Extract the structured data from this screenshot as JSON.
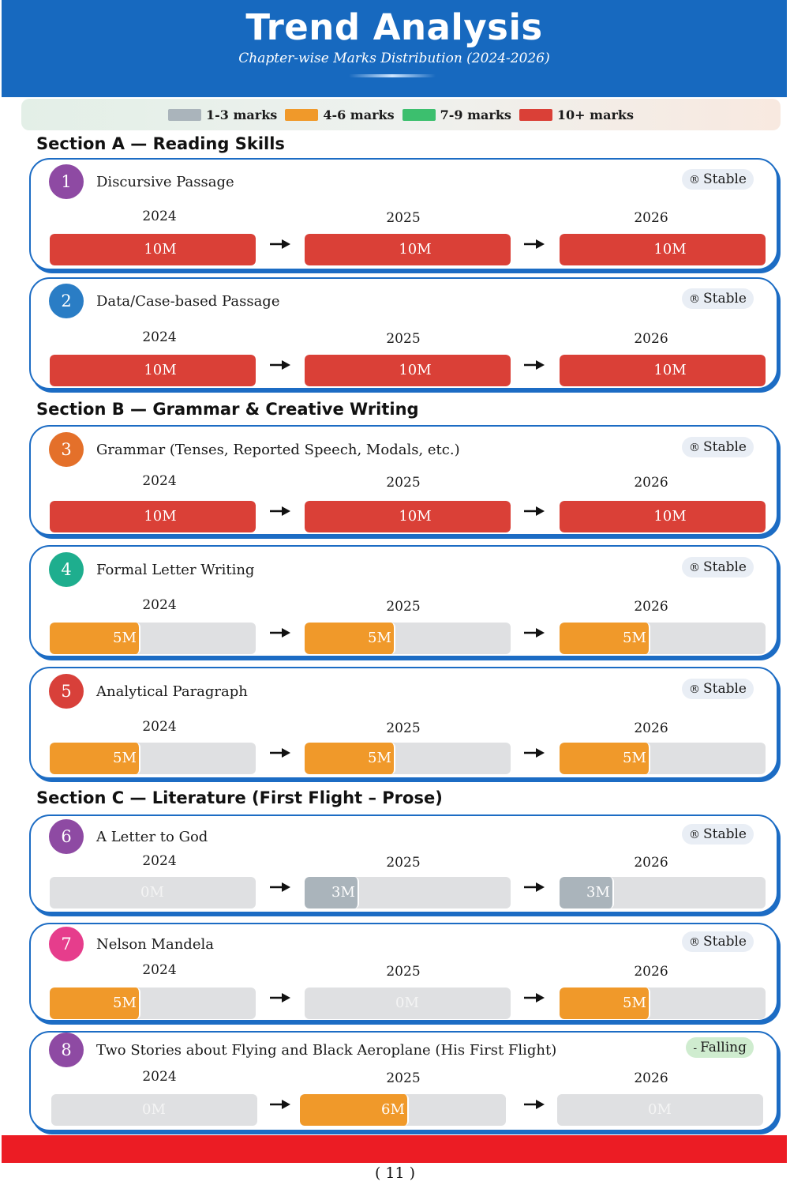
{
  "header": {
    "title": "Trend Analysis",
    "subtitle": "Chapter-wise Marks Distribution (2024-2026)"
  },
  "legend": [
    {
      "label": "1-3 marks",
      "color": "#aab4bb"
    },
    {
      "label": "4-6 marks",
      "color": "#f0992a"
    },
    {
      "label": "7-9 marks",
      "color": "#3cbf6e"
    },
    {
      "label": "10+ marks",
      "color": "#da4037"
    }
  ],
  "colors": {
    "empty": "#dfe0e2",
    "low": "#aab4bb",
    "mid": "#f0992a",
    "high": "#3cbf6e",
    "top": "#da4037",
    "card_border": "#1c6cc4",
    "empty_label": "#f4f4f4"
  },
  "sections": [
    {
      "heading": "Section A — Reading Skills"
    },
    {
      "heading": "Section B — Grammar & Creative Writing"
    },
    {
      "heading": "Section C — Literature (First Flight – Prose)"
    }
  ],
  "chapters": [
    {
      "num": "1",
      "title": "Discursive Passage",
      "status": "Stable",
      "status_symbol": "®",
      "circle_color": "#8e4aa3",
      "entries": [
        {
          "year": "2024",
          "marks": 10,
          "label": "10M"
        },
        {
          "year": "2025",
          "marks": 10,
          "label": "10M"
        },
        {
          "year": "2026",
          "marks": 10,
          "label": "10M"
        }
      ]
    },
    {
      "num": "2",
      "title": "Data/Case-based Passage",
      "status": "Stable",
      "status_symbol": "®",
      "circle_color": "#2a7dc5",
      "entries": [
        {
          "year": "2024",
          "marks": 10,
          "label": "10M"
        },
        {
          "year": "2025",
          "marks": 10,
          "label": "10M"
        },
        {
          "year": "2026",
          "marks": 10,
          "label": "10M"
        }
      ]
    },
    {
      "num": "3",
      "title": "Grammar (Tenses, Reported Speech, Modals, etc.)",
      "status": "Stable",
      "status_symbol": "®",
      "circle_color": "#e4702a",
      "entries": [
        {
          "year": "2024",
          "marks": 10,
          "label": "10M"
        },
        {
          "year": "2025",
          "marks": 10,
          "label": "10M"
        },
        {
          "year": "2026",
          "marks": 10,
          "label": "10M"
        }
      ]
    },
    {
      "num": "4",
      "title": "Formal Letter Writing",
      "status": "Stable",
      "status_symbol": "®",
      "circle_color": "#1eae8e",
      "entries": [
        {
          "year": "2024",
          "marks": 5,
          "label": "5M"
        },
        {
          "year": "2025",
          "marks": 5,
          "label": "5M"
        },
        {
          "year": "2026",
          "marks": 5,
          "label": "5M"
        }
      ]
    },
    {
      "num": "5",
      "title": "Analytical Paragraph",
      "status": "Stable",
      "status_symbol": "®",
      "circle_color": "#d8403a",
      "entries": [
        {
          "year": "2024",
          "marks": 5,
          "label": "5M"
        },
        {
          "year": "2025",
          "marks": 5,
          "label": "5M"
        },
        {
          "year": "2026",
          "marks": 5,
          "label": "5M"
        }
      ]
    },
    {
      "num": "6",
      "title": "A Letter to God",
      "status": "Stable",
      "status_symbol": "®",
      "circle_color": "#8e4aa3",
      "entries": [
        {
          "year": "2024",
          "marks": 0,
          "label": "0M"
        },
        {
          "year": "2025",
          "marks": 3,
          "label": "3M"
        },
        {
          "year": "2026",
          "marks": 3,
          "label": "3M"
        }
      ]
    },
    {
      "num": "7",
      "title": "Nelson Mandela",
      "status": "Stable",
      "status_symbol": "®",
      "circle_color": "#e63d8c",
      "entries": [
        {
          "year": "2024",
          "marks": 5,
          "label": "5M"
        },
        {
          "year": "2025",
          "marks": 0,
          "label": "0M"
        },
        {
          "year": "2026",
          "marks": 5,
          "label": "5M"
        }
      ]
    },
    {
      "num": "8",
      "title": "Two Stories about Flying and Black Aeroplane (His First Flight)",
      "status": "Falling",
      "status_symbol": "-",
      "circle_color": "#8e4aa3",
      "entries": [
        {
          "year": "2024",
          "marks": 0,
          "label": "0M"
        },
        {
          "year": "2025",
          "marks": 6,
          "label": "6M"
        },
        {
          "year": "2026",
          "marks": 0,
          "label": "0M"
        }
      ]
    }
  ],
  "footer": {
    "page": "( 11 )"
  }
}
